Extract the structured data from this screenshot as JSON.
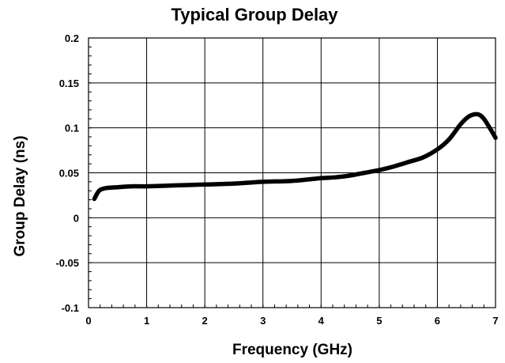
{
  "chart_data": {
    "type": "line",
    "title": "Typical Group Delay",
    "xlabel": "Frequency (GHz)",
    "ylabel": "Group Delay (ns)",
    "xlim": [
      0,
      7
    ],
    "ylim": [
      -0.1,
      0.2
    ],
    "x_ticks": [
      0,
      1,
      2,
      3,
      4,
      5,
      6,
      7
    ],
    "x_tick_labels": [
      "0",
      "1",
      "2",
      "3",
      "4",
      "5",
      "6",
      "7"
    ],
    "y_ticks": [
      -0.1,
      -0.05,
      0,
      0.05,
      0.1,
      0.15,
      0.2
    ],
    "y_tick_labels": [
      "-0.1",
      "-0.05",
      "0",
      "0.05",
      "0.1",
      "0.15",
      "0.2"
    ],
    "grid": true,
    "legend": "none",
    "series": [
      {
        "color": "#000000",
        "x": [
          0.1,
          0.15,
          0.2,
          0.3,
          0.5,
          0.75,
          1.0,
          1.5,
          2.0,
          2.5,
          3.0,
          3.5,
          4.0,
          4.25,
          4.5,
          4.75,
          5.0,
          5.25,
          5.5,
          5.75,
          6.0,
          6.2,
          6.4,
          6.55,
          6.7,
          6.8,
          6.9,
          7.0
        ],
        "y": [
          0.021,
          0.027,
          0.031,
          0.033,
          0.034,
          0.035,
          0.035,
          0.036,
          0.037,
          0.038,
          0.04,
          0.041,
          0.044,
          0.045,
          0.047,
          0.05,
          0.053,
          0.057,
          0.062,
          0.067,
          0.076,
          0.087,
          0.104,
          0.113,
          0.115,
          0.11,
          0.1,
          0.089
        ]
      }
    ]
  }
}
